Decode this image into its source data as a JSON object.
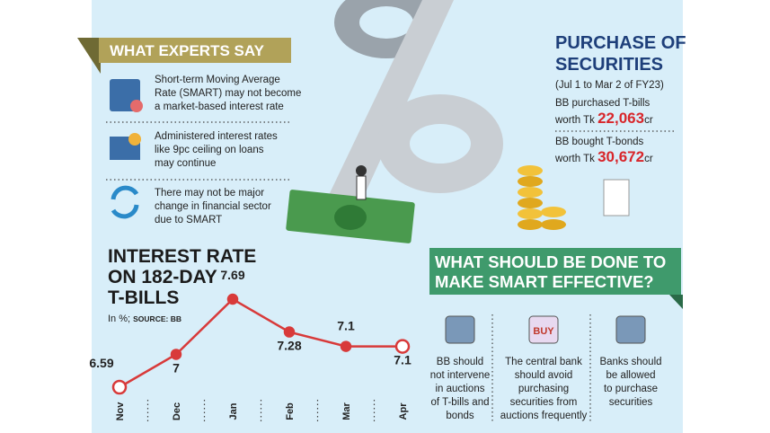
{
  "experts": {
    "heading": "WHAT EXPERTS SAY",
    "items": [
      {
        "lines": [
          "Short-term Moving Average",
          "Rate (SMART) may not become",
          "a market-based interest rate"
        ]
      },
      {
        "lines": [
          "Administered interest rates",
          "like 9pc ceiling on loans",
          "may continue"
        ]
      },
      {
        "lines": [
          "There may not be major",
          "change in financial sector",
          "due to SMART"
        ]
      }
    ]
  },
  "purchase": {
    "title": [
      "PURCHASE OF",
      "SECURITIES"
    ],
    "period": "(Jul 1 to Mar 2 of FY23)",
    "items": [
      {
        "line": "BB purchased T-bills",
        "prefix": "worth Tk",
        "amount": "22,063",
        "unit": "cr"
      },
      {
        "line": "BB bought T-bonds",
        "prefix": "worth Tk",
        "amount": "30,672",
        "unit": "cr"
      }
    ]
  },
  "actions": {
    "heading": [
      "WHAT SHOULD BE DONE TO",
      "MAKE SMART EFFECTIVE?"
    ],
    "items": [
      {
        "icon": "",
        "lines": [
          "BB should",
          "not intervene",
          "in auctions",
          "of T-bills and",
          "bonds"
        ]
      },
      {
        "icon": "BUY",
        "lines": [
          "The central bank",
          "should avoid",
          "purchasing",
          "securities from",
          "auctions frequently"
        ]
      },
      {
        "icon": "",
        "lines": [
          "Banks should",
          "be allowed",
          "to purchase",
          "securities"
        ]
      }
    ]
  },
  "chart_data": {
    "type": "line",
    "title": [
      "INTEREST RATE",
      "ON 182-DAY",
      "T-BILLS"
    ],
    "unit_note": "In %;",
    "source": "SOURCE: BB",
    "categories": [
      "Nov",
      "Dec",
      "Jan",
      "Feb",
      "Mar",
      "Apr"
    ],
    "values": [
      6.59,
      7,
      7.69,
      7.28,
      7.1,
      7.1
    ],
    "color": "#d83a3a"
  }
}
